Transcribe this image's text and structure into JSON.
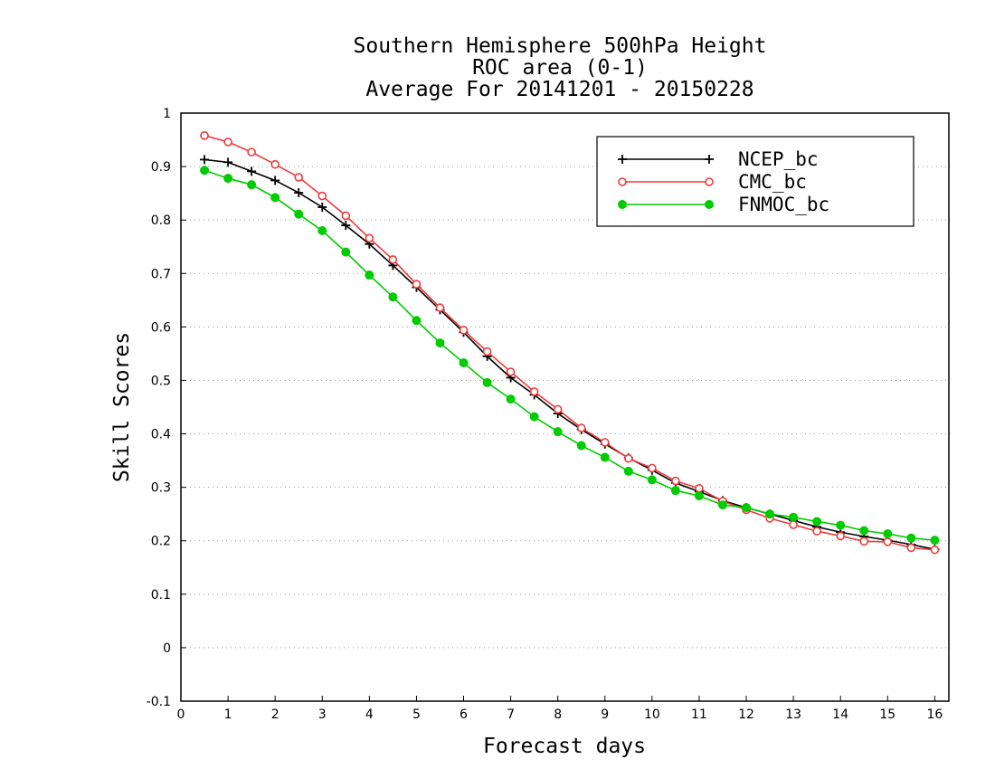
{
  "chart_data": {
    "type": "line",
    "title": [
      "Southern Hemisphere 500hPa Height",
      "ROC area (0-1)",
      "Average For 20141201 - 20150228"
    ],
    "xlabel": "Forecast days",
    "ylabel": "Skill Scores",
    "xlim": [
      0,
      16.3
    ],
    "ylim": [
      -0.1,
      1
    ],
    "xticks": [
      0,
      1,
      2,
      3,
      4,
      5,
      6,
      7,
      8,
      9,
      10,
      11,
      12,
      13,
      14,
      15,
      16
    ],
    "yticks": [
      -0.1,
      0,
      0.1,
      0.2,
      0.3,
      0.4,
      0.5,
      0.6,
      0.7,
      0.8,
      0.9,
      1
    ],
    "ytick_labels": [
      "-0.1",
      "0",
      "0.1",
      "0.2",
      "0.3",
      "0.4",
      "0.5",
      "0.6",
      "0.7",
      "0.8",
      "0.9",
      "1"
    ],
    "grid": "horizontal-dotted",
    "legend_position": "top-right",
    "x": [
      0.5,
      1,
      1.5,
      2,
      2.5,
      3,
      3.5,
      4,
      4.5,
      5,
      5.5,
      6,
      6.5,
      7,
      7.5,
      8,
      8.5,
      9,
      9.5,
      10,
      10.5,
      11,
      11.5,
      12,
      12.5,
      13,
      13.5,
      14,
      14.5,
      15,
      15.5,
      16
    ],
    "series": [
      {
        "name": "NCEP_bc",
        "color": "#000000",
        "marker": "plus",
        "values": [
          0.913,
          0.908,
          0.891,
          0.874,
          0.851,
          0.824,
          0.79,
          0.755,
          0.715,
          0.674,
          0.632,
          0.59,
          0.545,
          0.505,
          0.473,
          0.438,
          0.408,
          0.381,
          0.355,
          0.332,
          0.308,
          0.292,
          0.275,
          0.262,
          0.25,
          0.238,
          0.226,
          0.216,
          0.208,
          0.201,
          0.193,
          0.184
        ]
      },
      {
        "name": "CMC_bc",
        "color": "#ee3b3b",
        "marker": "open-circle",
        "values": [
          0.958,
          0.946,
          0.927,
          0.904,
          0.88,
          0.845,
          0.808,
          0.766,
          0.726,
          0.68,
          0.636,
          0.594,
          0.554,
          0.516,
          0.479,
          0.446,
          0.411,
          0.384,
          0.354,
          0.336,
          0.312,
          0.298,
          0.274,
          0.258,
          0.242,
          0.23,
          0.218,
          0.209,
          0.199,
          0.198,
          0.187,
          0.183
        ]
      },
      {
        "name": "FNMOC_bc",
        "color": "#00cc00",
        "marker": "filled-circle",
        "values": [
          0.893,
          0.878,
          0.866,
          0.842,
          0.811,
          0.78,
          0.74,
          0.697,
          0.656,
          0.612,
          0.57,
          0.533,
          0.496,
          0.465,
          0.432,
          0.404,
          0.378,
          0.356,
          0.33,
          0.314,
          0.294,
          0.284,
          0.267,
          0.262,
          0.25,
          0.244,
          0.236,
          0.229,
          0.219,
          0.213,
          0.205,
          0.201
        ]
      }
    ]
  }
}
